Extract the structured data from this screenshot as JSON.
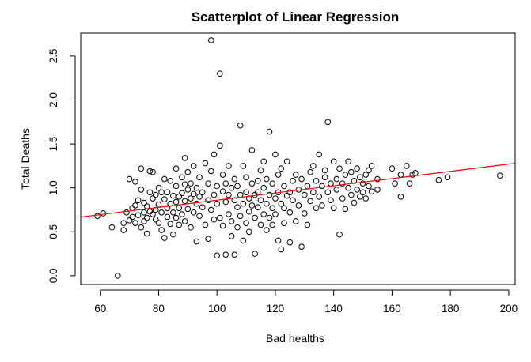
{
  "chart_data": {
    "type": "scatter",
    "title": "Scatterplot of Linear Regression",
    "xlabel": "Bad healths",
    "ylabel": "Total Deaths",
    "xlim": [
      53.3,
      202.2
    ],
    "ylim": [
      -0.1,
      2.76
    ],
    "x_ticks": [
      60,
      80,
      100,
      120,
      140,
      160,
      180,
      200
    ],
    "x_tick_labels": [
      "60",
      "80",
      "100",
      "120",
      "140",
      "160",
      "180",
      "200"
    ],
    "y_ticks": [
      0.0,
      0.5,
      1.0,
      1.5,
      2.0,
      2.5
    ],
    "y_tick_labels": [
      "0.0",
      "0.5",
      "1.0",
      "1.5",
      "2.0",
      "2.5"
    ],
    "grid": false,
    "series": [
      {
        "marker": "open-circle",
        "color": "#000000",
        "points": [
          [
            59,
            0.68
          ],
          [
            61,
            0.71
          ],
          [
            64,
            0.55
          ],
          [
            66,
            0.0
          ],
          [
            68,
            0.6
          ],
          [
            68,
            0.52
          ],
          [
            69,
            0.72
          ],
          [
            70,
            0.63
          ],
          [
            70,
            1.1
          ],
          [
            71,
            0.77
          ],
          [
            71,
            0.67
          ],
          [
            72,
            1.07
          ],
          [
            72,
            0.8
          ],
          [
            72,
            0.6
          ],
          [
            73,
            0.69
          ],
          [
            73,
            0.86
          ],
          [
            74,
            0.55
          ],
          [
            74,
            0.98
          ],
          [
            74,
            1.22
          ],
          [
            75,
            0.83
          ],
          [
            75,
            0.72
          ],
          [
            75,
            0.62
          ],
          [
            76,
            0.66
          ],
          [
            76,
            0.79
          ],
          [
            76,
            0.48
          ],
          [
            77,
            1.19
          ],
          [
            77,
            0.95
          ],
          [
            77,
            0.73
          ],
          [
            78,
            0.88
          ],
          [
            78,
            0.7
          ],
          [
            78,
            1.18
          ],
          [
            79,
            0.75
          ],
          [
            79,
            0.92
          ],
          [
            79,
            0.64
          ],
          [
            80,
            1.0
          ],
          [
            80,
            0.6
          ],
          [
            80,
            0.81
          ],
          [
            81,
            0.52
          ],
          [
            81,
            0.95
          ],
          [
            81,
            0.72
          ],
          [
            82,
            0.87
          ],
          [
            82,
            0.43
          ],
          [
            82,
            1.1
          ],
          [
            83,
            0.67
          ],
          [
            83,
            0.77
          ],
          [
            83,
            0.95
          ],
          [
            84,
            0.82
          ],
          [
            84,
            0.59
          ],
          [
            84,
            1.08
          ],
          [
            85,
            0.91
          ],
          [
            85,
            0.72
          ],
          [
            85,
            0.47
          ],
          [
            86,
            0.84
          ],
          [
            86,
            1.02
          ],
          [
            86,
            0.66
          ],
          [
            86,
            1.22
          ],
          [
            87,
            0.9
          ],
          [
            87,
            0.77
          ],
          [
            87,
            0.58
          ],
          [
            88,
            1.12
          ],
          [
            88,
            0.94
          ],
          [
            88,
            0.7
          ],
          [
            89,
            1.34
          ],
          [
            89,
            0.85
          ],
          [
            89,
            0.62
          ],
          [
            89,
            1.04
          ],
          [
            90,
            0.98
          ],
          [
            90,
            0.76
          ],
          [
            90,
            1.18
          ],
          [
            91,
            0.88
          ],
          [
            91,
            0.55
          ],
          [
            91,
            1.05
          ],
          [
            92,
            0.93
          ],
          [
            92,
            0.72
          ],
          [
            92,
            1.25
          ],
          [
            93,
            0.82
          ],
          [
            93,
            0.39
          ],
          [
            93,
            1.0
          ],
          [
            94,
            0.9
          ],
          [
            94,
            0.68
          ],
          [
            94,
            1.12
          ],
          [
            95,
            0.78
          ],
          [
            95,
            0.95
          ],
          [
            96,
            0.58
          ],
          [
            96,
            1.28
          ],
          [
            97,
            0.86
          ],
          [
            97,
            0.42
          ],
          [
            97,
            1.05
          ],
          [
            98,
            2.68
          ],
          [
            98,
            0.75
          ],
          [
            98,
            1.19
          ],
          [
            99,
            0.92
          ],
          [
            99,
            0.64
          ],
          [
            99,
            1.38
          ],
          [
            100,
            0.23
          ],
          [
            100,
            0.82
          ],
          [
            100,
            1.02
          ],
          [
            101,
            2.3
          ],
          [
            101,
            0.66
          ],
          [
            101,
            1.48
          ],
          [
            102,
            0.96
          ],
          [
            102,
            0.57
          ],
          [
            102,
            1.15
          ],
          [
            103,
            0.24
          ],
          [
            103,
            0.84
          ],
          [
            103,
            1.05
          ],
          [
            104,
            0.7
          ],
          [
            104,
            0.92
          ],
          [
            104,
            1.25
          ],
          [
            105,
            0.62
          ],
          [
            105,
            1.0
          ],
          [
            105,
            0.45
          ],
          [
            106,
            0.86
          ],
          [
            106,
            1.1
          ],
          [
            106,
            0.24
          ],
          [
            107,
            0.78
          ],
          [
            107,
            1.02
          ],
          [
            107,
            0.55
          ],
          [
            108,
            1.71
          ],
          [
            108,
            0.92
          ],
          [
            108,
            0.68
          ],
          [
            109,
            0.4
          ],
          [
            109,
            1.25
          ],
          [
            109,
            0.82
          ],
          [
            110,
            0.95
          ],
          [
            110,
            0.6
          ],
          [
            110,
            1.12
          ],
          [
            111,
            0.73
          ],
          [
            111,
            0.88
          ],
          [
            111,
            0.5
          ],
          [
            112,
            1.05
          ],
          [
            112,
            0.8
          ],
          [
            112,
            1.43
          ],
          [
            113,
            0.25
          ],
          [
            113,
            0.92
          ],
          [
            113,
            0.66
          ],
          [
            114,
            1.08
          ],
          [
            114,
            0.78
          ],
          [
            114,
            0.95
          ],
          [
            115,
            0.58
          ],
          [
            115,
            1.2
          ],
          [
            115,
            0.86
          ],
          [
            116,
            1.0
          ],
          [
            116,
            0.7
          ],
          [
            116,
            1.3
          ],
          [
            117,
            0.82
          ],
          [
            117,
            0.52
          ],
          [
            117,
            1.1
          ],
          [
            118,
            1.64
          ],
          [
            118,
            0.92
          ],
          [
            118,
            0.66
          ],
          [
            119,
            0.77
          ],
          [
            119,
            1.05
          ],
          [
            119,
            0.58
          ],
          [
            120,
            1.38
          ],
          [
            120,
            0.88
          ],
          [
            120,
            0.7
          ],
          [
            121,
            1.15
          ],
          [
            121,
            0.95
          ],
          [
            121,
            0.4
          ],
          [
            122,
            0.3
          ],
          [
            122,
            0.82
          ],
          [
            122,
            1.22
          ],
          [
            123,
            0.6
          ],
          [
            123,
            1.02
          ],
          [
            123,
            0.77
          ],
          [
            124,
            0.91
          ],
          [
            124,
            1.3
          ],
          [
            125,
            0.38
          ],
          [
            125,
            0.95
          ],
          [
            125,
            0.72
          ],
          [
            126,
            1.08
          ],
          [
            126,
            0.86
          ],
          [
            127,
            0.62
          ],
          [
            127,
            1.15
          ],
          [
            128,
            0.98
          ],
          [
            128,
            0.8
          ],
          [
            129,
            1.1
          ],
          [
            129,
            0.33
          ],
          [
            130,
            0.92
          ],
          [
            130,
            0.71
          ],
          [
            131,
            1.02
          ],
          [
            131,
            0.58
          ],
          [
            132,
            1.18
          ],
          [
            132,
            0.85
          ],
          [
            133,
            0.95
          ],
          [
            133,
            1.25
          ],
          [
            134,
            0.77
          ],
          [
            134,
            1.08
          ],
          [
            135,
            1.38
          ],
          [
            135,
            0.9
          ],
          [
            136,
            1.02
          ],
          [
            136,
            0.8
          ],
          [
            137,
            1.2
          ],
          [
            137,
            1.12
          ],
          [
            138,
            0.95
          ],
          [
            138,
            1.75
          ],
          [
            139,
            1.05
          ],
          [
            139,
            0.86
          ],
          [
            140,
            1.3
          ],
          [
            140,
            0.77
          ],
          [
            141,
            1.1
          ],
          [
            141,
            0.98
          ],
          [
            142,
            1.22
          ],
          [
            142,
            0.47
          ],
          [
            143,
            1.05
          ],
          [
            143,
            0.88
          ],
          [
            144,
            1.15
          ],
          [
            144,
            0.76
          ],
          [
            145,
            1.0
          ],
          [
            145,
            1.3
          ],
          [
            146,
            1.18
          ],
          [
            146,
            0.92
          ],
          [
            147,
            1.08
          ],
          [
            147,
            0.83
          ],
          [
            148,
            1.22
          ],
          [
            148,
            0.98
          ],
          [
            149,
            1.12
          ],
          [
            149,
            0.9
          ],
          [
            150,
            1.05
          ],
          [
            150,
            0.95
          ],
          [
            151,
            1.15
          ],
          [
            151,
            0.88
          ],
          [
            152,
            1.2
          ],
          [
            152,
            1.02
          ],
          [
            153,
            0.96
          ],
          [
            153,
            1.25
          ],
          [
            155,
            1.1
          ],
          [
            155,
            0.98
          ],
          [
            160,
            1.22
          ],
          [
            161,
            1.05
          ],
          [
            163,
            1.15
          ],
          [
            163,
            0.9
          ],
          [
            165,
            1.25
          ],
          [
            166,
            1.05
          ],
          [
            167,
            1.15
          ],
          [
            168,
            1.17
          ],
          [
            176,
            1.09
          ],
          [
            179,
            1.12
          ],
          [
            197,
            1.14
          ]
        ]
      }
    ],
    "regression_line": {
      "color": "#ff0000",
      "intercept": 0.45,
      "slope": 0.0041
    }
  }
}
